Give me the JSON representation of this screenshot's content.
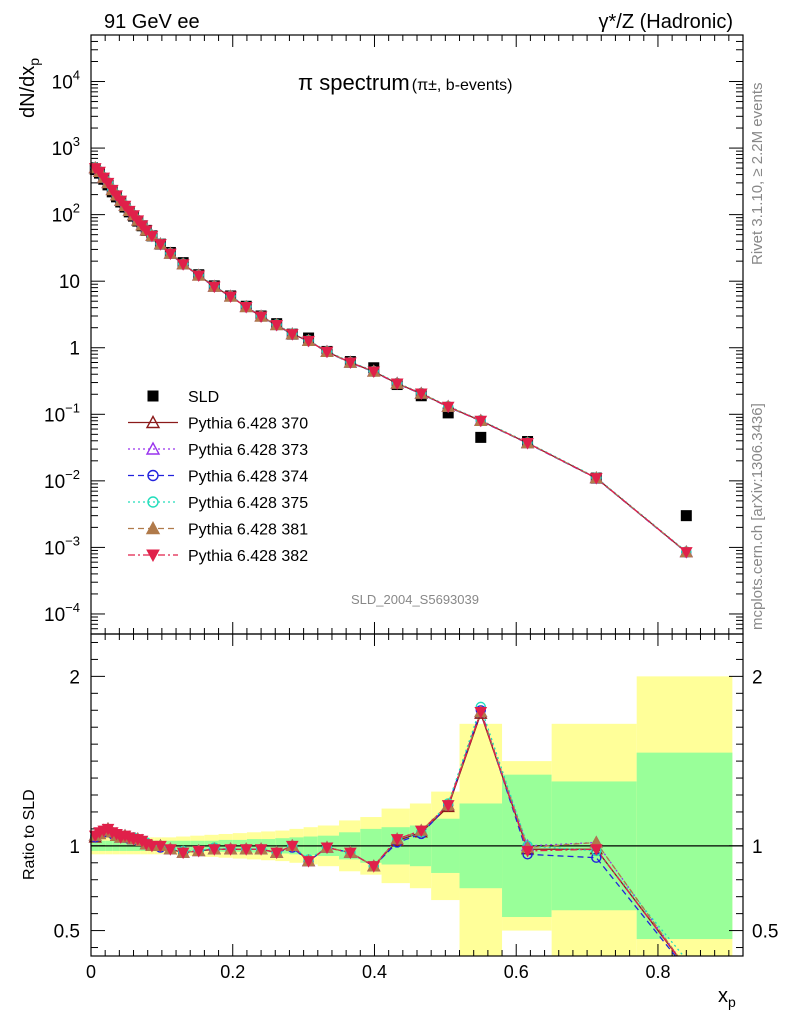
{
  "header": {
    "left": "91 GeV ee",
    "right": "γ*/Z (Hadronic)"
  },
  "side_labels": {
    "rivet": "Rivet 3.1.10, ≥ 2.2M events",
    "mcplots": "mcplots.cern.ch [arXiv:1306.3436]"
  },
  "chart_data": [
    {
      "type": "scatter",
      "title_main": "π spectrum",
      "title_sub": "(π±, b-events)",
      "watermark": "SLD_2004_S5693039",
      "ylabel_main": "dN/dx",
      "ylabel_sub": "p",
      "yscale": "log",
      "xlim": [
        0,
        0.92
      ],
      "ylim": [
        5e-05,
        50000
      ],
      "y_ticks": [
        {
          "v": 10000,
          "mant": "10",
          "exp": "4"
        },
        {
          "v": 1000,
          "mant": "10",
          "exp": "3"
        },
        {
          "v": 100,
          "mant": "10",
          "exp": "2"
        },
        {
          "v": 10,
          "mant": "10",
          "exp": ""
        },
        {
          "v": 1,
          "mant": "1",
          "exp": ""
        },
        {
          "v": 0.1,
          "mant": "10",
          "exp": "−1"
        },
        {
          "v": 0.01,
          "mant": "10",
          "exp": "−2"
        },
        {
          "v": 0.001,
          "mant": "10",
          "exp": "−3"
        },
        {
          "v": 0.0001,
          "mant": "10",
          "exp": "−4"
        }
      ],
      "legend": [
        {
          "name": "SLD",
          "color": "#000000",
          "marker": "square",
          "dash": "none"
        },
        {
          "name": "Pythia 6.428 370",
          "color": "#8b1a1a",
          "marker": "triangle-open",
          "dash": "solid"
        },
        {
          "name": "Pythia 6.428 373",
          "color": "#9933ee",
          "marker": "triangle-open",
          "dash": "dotted"
        },
        {
          "name": "Pythia 6.428 374",
          "color": "#2222dd",
          "marker": "circle-open",
          "dash": "dashed"
        },
        {
          "name": "Pythia 6.428 375",
          "color": "#22ddbb",
          "marker": "circle-open",
          "dash": "dotted"
        },
        {
          "name": "Pythia 6.428 381",
          "color": "#b07a4a",
          "marker": "triangle-filled",
          "dash": "dashed"
        },
        {
          "name": "Pythia 6.428 382",
          "color": "#e0204a",
          "marker": "triangle-down-filled",
          "dash": "dashdot"
        }
      ],
      "x": [
        0.006,
        0.012,
        0.018,
        0.024,
        0.03,
        0.036,
        0.042,
        0.048,
        0.054,
        0.06,
        0.066,
        0.072,
        0.078,
        0.086,
        0.098,
        0.112,
        0.13,
        0.152,
        0.174,
        0.197,
        0.219,
        0.24,
        0.262,
        0.284,
        0.307,
        0.333,
        0.366,
        0.399,
        0.432,
        0.466,
        0.504,
        0.55,
        0.616,
        0.713,
        0.84
      ],
      "data_y": [
        480,
        420,
        340,
        280,
        220,
        185,
        155,
        130,
        110,
        95,
        80,
        68,
        58,
        48,
        36,
        27,
        19,
        12.5,
        8.5,
        6.0,
        4.2,
        3.0,
        2.3,
        1.6,
        1.4,
        0.88,
        0.62,
        0.5,
        0.28,
        0.19,
        0.105,
        0.045,
        0.039,
        0.011,
        0.003
      ],
      "mc_y": [
        500,
        440,
        360,
        300,
        235,
        195,
        162,
        136,
        114,
        98,
        82,
        69,
        58,
        48,
        36,
        26,
        18,
        12.2,
        8.3,
        5.9,
        4.1,
        2.95,
        2.2,
        1.6,
        1.27,
        0.87,
        0.6,
        0.44,
        0.29,
        0.205,
        0.13,
        0.08,
        0.037,
        0.011,
        0.00085
      ]
    },
    {
      "type": "scatter",
      "ylabel": "Ratio to SLD",
      "xlabel_main": "x",
      "xlabel_sub": "p",
      "xlim": [
        0,
        0.92
      ],
      "ylim": [
        0.35,
        2.25
      ],
      "x_ticks": [
        0,
        0.2,
        0.4,
        0.6,
        0.8
      ],
      "x_tick_labels": [
        "0",
        "0.2",
        "0.4",
        "0.6",
        "0.8"
      ],
      "y_ticks": [
        0.5,
        1,
        2
      ],
      "y_tick_labels": [
        "0.5",
        "1",
        "2"
      ],
      "band_edges": [
        0.0,
        0.01,
        0.02,
        0.03,
        0.04,
        0.05,
        0.06,
        0.07,
        0.08,
        0.09,
        0.1,
        0.12,
        0.14,
        0.16,
        0.18,
        0.2,
        0.22,
        0.24,
        0.26,
        0.28,
        0.3,
        0.32,
        0.35,
        0.38,
        0.41,
        0.45,
        0.48,
        0.52,
        0.58,
        0.65,
        0.77,
        0.905
      ],
      "band_stat": [
        0.03,
        0.03,
        0.03,
        0.03,
        0.03,
        0.03,
        0.03,
        0.03,
        0.03,
        0.03,
        0.03,
        0.03,
        0.03,
        0.03,
        0.035,
        0.035,
        0.04,
        0.04,
        0.045,
        0.05,
        0.055,
        0.06,
        0.08,
        0.1,
        0.11,
        0.12,
        0.16,
        0.25,
        0.42,
        0.38,
        0.55
      ],
      "band_total": [
        0.05,
        0.05,
        0.05,
        0.05,
        0.05,
        0.05,
        0.05,
        0.05,
        0.05,
        0.05,
        0.05,
        0.055,
        0.06,
        0.065,
        0.07,
        0.075,
        0.08,
        0.085,
        0.09,
        0.1,
        0.11,
        0.12,
        0.15,
        0.17,
        0.22,
        0.25,
        0.32,
        0.72,
        0.5,
        0.72,
        1.0
      ],
      "ratio_370": [
        1.05,
        1.07,
        1.09,
        1.1,
        1.08,
        1.06,
        1.05,
        1.06,
        1.05,
        1.04,
        1.04,
        1.03,
        1.01,
        1.0,
        1.0,
        0.98,
        0.96,
        0.97,
        0.98,
        0.98,
        0.98,
        0.98,
        0.96,
        1.0,
        0.91,
        0.99,
        0.96,
        0.88,
        1.03,
        1.08,
        1.23,
        1.78,
        0.98,
        0.98,
        0.28
      ],
      "ratio_373": [
        1.06,
        1.08,
        1.09,
        1.1,
        1.08,
        1.07,
        1.05,
        1.06,
        1.05,
        1.04,
        1.04,
        1.03,
        1.01,
        1.0,
        1.0,
        0.98,
        0.96,
        0.97,
        0.98,
        0.98,
        0.98,
        0.98,
        0.96,
        1.0,
        0.91,
        0.99,
        0.96,
        0.88,
        1.04,
        1.09,
        1.24,
        1.79,
        1.0,
        1.02,
        0.28
      ],
      "ratio_374": [
        1.05,
        1.07,
        1.08,
        1.09,
        1.07,
        1.06,
        1.05,
        1.05,
        1.04,
        1.04,
        1.03,
        1.03,
        1.01,
        1.0,
        0.99,
        0.98,
        0.96,
        0.97,
        0.98,
        0.98,
        0.98,
        0.98,
        0.96,
        0.99,
        0.91,
        0.99,
        0.96,
        0.88,
        1.02,
        1.07,
        1.24,
        1.8,
        0.95,
        0.93,
        0.27
      ],
      "ratio_375": [
        1.06,
        1.08,
        1.09,
        1.1,
        1.08,
        1.07,
        1.06,
        1.06,
        1.05,
        1.05,
        1.04,
        1.03,
        1.02,
        1.0,
        1.0,
        0.98,
        0.97,
        0.97,
        0.99,
        0.98,
        0.98,
        0.98,
        0.96,
        1.0,
        0.92,
        0.99,
        0.96,
        0.88,
        1.04,
        1.08,
        1.25,
        1.82,
        1.0,
        0.97,
        0.33
      ],
      "ratio_381": [
        1.06,
        1.07,
        1.09,
        1.1,
        1.08,
        1.06,
        1.05,
        1.06,
        1.05,
        1.04,
        1.04,
        1.03,
        1.01,
        1.0,
        1.0,
        0.98,
        0.96,
        0.97,
        0.98,
        0.98,
        0.98,
        0.98,
        0.96,
        1.0,
        0.91,
        0.99,
        0.96,
        0.88,
        1.04,
        1.09,
        1.24,
        1.79,
        0.99,
        1.02,
        0.28
      ],
      "ratio_382": [
        1.06,
        1.08,
        1.09,
        1.1,
        1.08,
        1.07,
        1.05,
        1.06,
        1.05,
        1.04,
        1.04,
        1.03,
        1.01,
        1.0,
        1.0,
        0.98,
        0.96,
        0.97,
        0.98,
        0.98,
        0.98,
        0.98,
        0.96,
        1.0,
        0.91,
        0.99,
        0.96,
        0.88,
        1.04,
        1.09,
        1.24,
        1.79,
        0.97,
        0.98,
        0.28
      ]
    }
  ]
}
